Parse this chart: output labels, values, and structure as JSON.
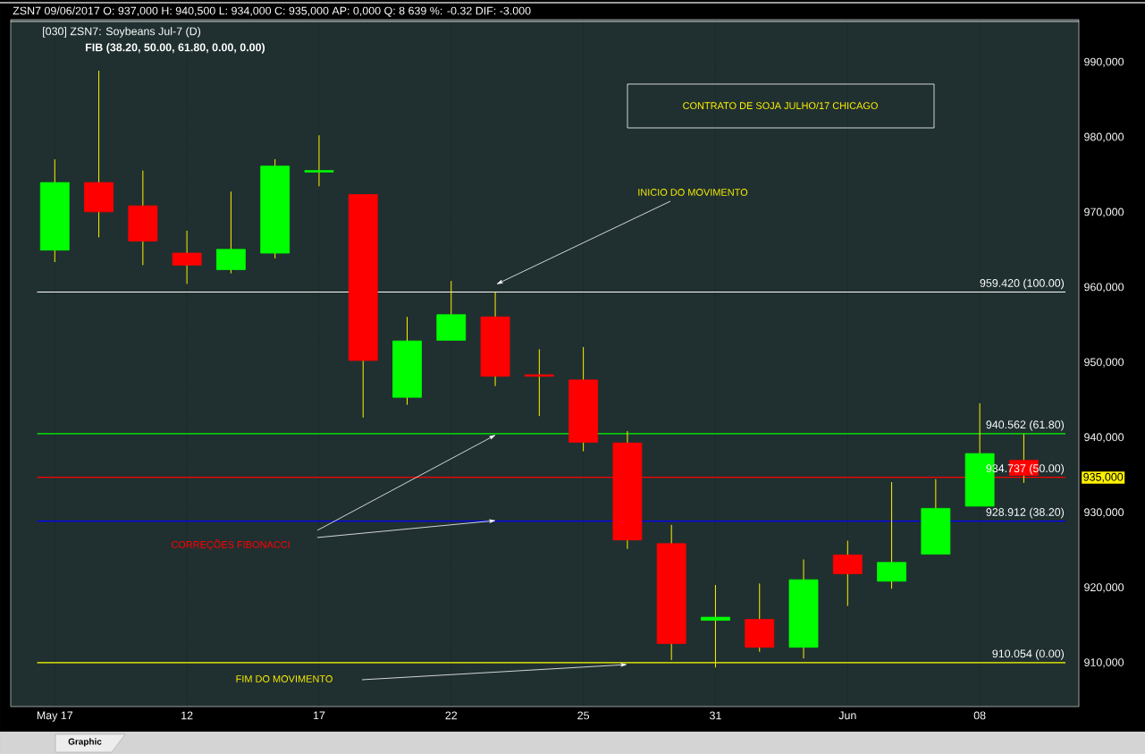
{
  "chart_data": {
    "type": "candlestick",
    "title": "ZSN7   09/06/2017  O: 937,000   H: 940,500   L: 934,000   C: 935,000  AP: 0,000  Q: 8 639  %: -0.32  DIF: -3.000",
    "subtitle": "[030] ZSN7: Soybeans Jul-7     (D)",
    "categories": [
      "May 17",
      null,
      null,
      "12",
      null,
      null,
      "17",
      null,
      null,
      "22",
      null,
      null,
      "25",
      null,
      null,
      "31",
      null,
      null,
      "Jun",
      null,
      null,
      "08",
      null
    ],
    "ohlc": [
      [
        965000,
        977100,
        963400,
        974000
      ],
      [
        974000,
        988900,
        966700,
        970100
      ],
      [
        970900,
        975600,
        963000,
        966200
      ],
      [
        964600,
        967600,
        960500,
        963000
      ],
      [
        962400,
        972800,
        961900,
        965100
      ],
      [
        964600,
        977100,
        963900,
        976200
      ],
      [
        975400,
        980300,
        973500,
        975600
      ],
      [
        972400,
        972400,
        942700,
        950300
      ],
      [
        945400,
        956100,
        944400,
        952900
      ],
      [
        953000,
        960900,
        953000,
        956400
      ],
      [
        956100,
        959400,
        946900,
        948200
      ],
      [
        948400,
        951800,
        942900,
        948200
      ],
      [
        947700,
        952100,
        938200,
        939400
      ],
      [
        939300,
        940900,
        925200,
        926400
      ],
      [
        925900,
        928400,
        910400,
        912600
      ],
      [
        915700,
        920400,
        909400,
        916100
      ],
      [
        915800,
        920600,
        911500,
        912100
      ],
      [
        912100,
        923800,
        910600,
        921100
      ],
      [
        924400,
        926300,
        917600,
        921900
      ],
      [
        920900,
        934100,
        919900,
        923400
      ],
      [
        924500,
        934500,
        924500,
        930600
      ],
      [
        930900,
        944600,
        930900,
        937900
      ],
      [
        937000,
        940500,
        934000,
        935000
      ]
    ],
    "colors": [
      "#00ff00",
      "#ff0000",
      "#ff0000",
      "#ff0000",
      "#00ff00",
      "#00ff00",
      "#00ff00",
      "#ff0000",
      "#00ff00",
      "#00ff00",
      "#ff0000",
      "#ff0000",
      "#ff0000",
      "#ff0000",
      "#ff0000",
      "#00ff00",
      "#ff0000",
      "#00ff00",
      "#ff0000",
      "#00ff00",
      "#00ff00",
      "#00ff00",
      "#ff0000"
    ],
    "ylim": [
      904200,
      995700
    ],
    "yticks": [
      {
        "value": 910000,
        "label": "910,000"
      },
      {
        "value": 920000,
        "label": "920,000"
      },
      {
        "value": 930000,
        "label": "930,000"
      },
      {
        "value": 940000,
        "label": "940,000"
      },
      {
        "value": 950000,
        "label": "950,000"
      },
      {
        "value": 960000,
        "label": "960,000"
      },
      {
        "value": 970000,
        "label": "970,000"
      },
      {
        "value": 980000,
        "label": "980,000"
      },
      {
        "value": 990000,
        "label": "990,000"
      }
    ],
    "grid": "x",
    "ref_lines": [
      {
        "axis": "y",
        "value": 959420,
        "color": "#ffffff"
      },
      {
        "axis": "y",
        "value": 940562,
        "color": "#00ff00"
      },
      {
        "axis": "y",
        "value": 934737,
        "color": "#ff0000"
      },
      {
        "axis": "y",
        "value": 928912,
        "color": "#0000ff"
      },
      {
        "axis": "y",
        "value": 910054,
        "color": "#ffff00"
      }
    ],
    "annotations": [
      "CONTRATO DE SOJA JULHO/17 CHICAGO",
      "INICIO DO MOVIMENTO",
      "CORREÇÕES FIBONACCI",
      "FIM DO MOVIMENTO",
      "FIB (38.20, 50.00, 61.80, 0.00, 0.00)",
      "Graphic",
      "935,000",
      "959.420 (100.00)",
      "940.562 (61.80)",
      "934.737 (50.00)",
      "928.912 (38.20)",
      "910.054 (0.00)"
    ]
  }
}
